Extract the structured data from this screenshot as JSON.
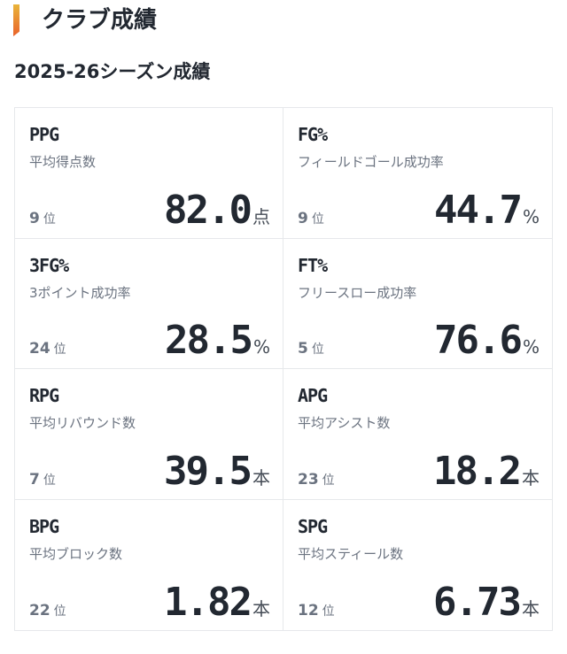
{
  "header": {
    "title": "クラブ成績",
    "accent": "#e9822e"
  },
  "section": {
    "title": "2025-26シーズン成績"
  },
  "stats": [
    {
      "label": "PPG",
      "desc": "平均得点数",
      "rank": "9",
      "rank_suffix": "位",
      "value": "82.0",
      "unit": "点"
    },
    {
      "label": "FG%",
      "desc": "フィールドゴール成功率",
      "rank": "9",
      "rank_suffix": "位",
      "value": "44.7",
      "unit": "%"
    },
    {
      "label": "3FG%",
      "desc": "3ポイント成功率",
      "rank": "24",
      "rank_suffix": "位",
      "value": "28.5",
      "unit": "%"
    },
    {
      "label": "FT%",
      "desc": "フリースロー成功率",
      "rank": "5",
      "rank_suffix": "位",
      "value": "76.6",
      "unit": "%"
    },
    {
      "label": "RPG",
      "desc": "平均リバウンド数",
      "rank": "7",
      "rank_suffix": "位",
      "value": "39.5",
      "unit": "本"
    },
    {
      "label": "APG",
      "desc": "平均アシスト数",
      "rank": "23",
      "rank_suffix": "位",
      "value": "18.2",
      "unit": "本"
    },
    {
      "label": "BPG",
      "desc": "平均ブロック数",
      "rank": "22",
      "rank_suffix": "位",
      "value": "1.82",
      "unit": "本"
    },
    {
      "label": "SPG",
      "desc": "平均スティール数",
      "rank": "12",
      "rank_suffix": "位",
      "value": "6.73",
      "unit": "本"
    }
  ]
}
